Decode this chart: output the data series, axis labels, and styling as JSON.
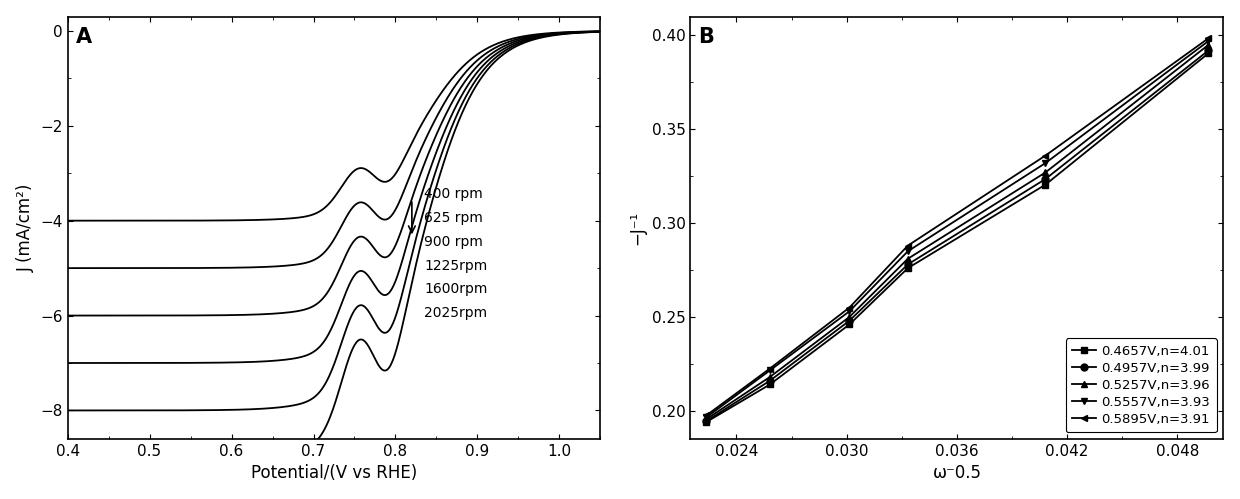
{
  "panel_A": {
    "label": "A",
    "xlabel": "Potential/(V vs RHE)",
    "ylabel": "J (mA/cm²)",
    "xlim": [
      0.4,
      1.05
    ],
    "ylim": [
      -8.6,
      0.3
    ],
    "xticks": [
      0.4,
      0.5,
      0.6,
      0.7,
      0.8,
      0.9,
      1.0
    ],
    "yticks": [
      0,
      -2,
      -4,
      -6,
      -8
    ],
    "rpms": [
      400,
      625,
      900,
      1225,
      1600,
      2025
    ],
    "legend_labels": [
      "400 rpm",
      "625 rpm",
      "900 rpm",
      "1225rpm",
      "1600rpm",
      "2025rpm"
    ]
  },
  "panel_B": {
    "label": "B",
    "xlabel": "ω⁻0.5",
    "ylabel": "−J⁻¹",
    "xlim": [
      0.0215,
      0.0505
    ],
    "ylim": [
      0.185,
      0.41
    ],
    "xticks": [
      0.024,
      0.03,
      0.036,
      0.042,
      0.048
    ],
    "yticks": [
      0.2,
      0.25,
      0.3,
      0.35,
      0.4
    ],
    "series": [
      {
        "label": "0.4657V,n=4.01",
        "marker": "s",
        "x": [
          0.02236,
          0.02582,
          0.03015,
          0.03333,
          0.04082,
          0.04969
        ],
        "y": [
          0.194,
          0.214,
          0.246,
          0.276,
          0.3205,
          0.3905
        ]
      },
      {
        "label": "0.4957V,n=3.99",
        "marker": "o",
        "x": [
          0.02236,
          0.02582,
          0.03015,
          0.03333,
          0.04082,
          0.04969
        ],
        "y": [
          0.1945,
          0.216,
          0.248,
          0.278,
          0.3235,
          0.392
        ]
      },
      {
        "label": "0.5257V,n=3.96",
        "marker": "^",
        "x": [
          0.02236,
          0.02582,
          0.03015,
          0.03333,
          0.04082,
          0.04969
        ],
        "y": [
          0.1955,
          0.218,
          0.25,
          0.281,
          0.327,
          0.395
        ]
      },
      {
        "label": "0.5557V,n=3.93",
        "marker": "v",
        "x": [
          0.02236,
          0.02582,
          0.03015,
          0.03333,
          0.04082,
          0.04969
        ],
        "y": [
          0.1965,
          0.2215,
          0.253,
          0.285,
          0.332,
          0.397
        ]
      },
      {
        "label": "0.5895V,n=3.91",
        "marker": "<",
        "x": [
          0.02236,
          0.02582,
          0.03015,
          0.03333,
          0.04082,
          0.04969
        ],
        "y": [
          0.1975,
          0.2225,
          0.255,
          0.288,
          0.336,
          0.3985
        ]
      }
    ]
  }
}
